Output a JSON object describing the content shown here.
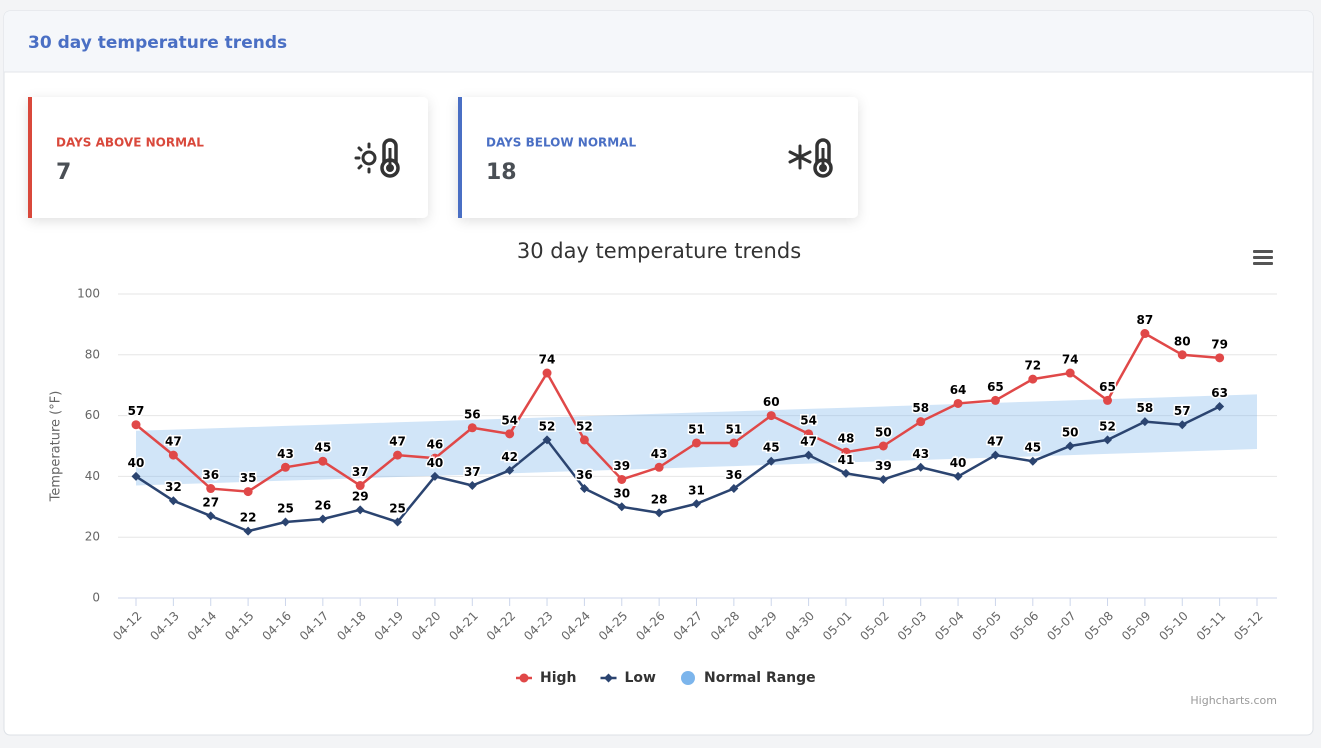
{
  "header": {
    "title": "30 day temperature trends"
  },
  "cards": [
    {
      "label": "DAYS ABOVE NORMAL",
      "value": 7
    },
    {
      "label": "DAYS BELOW NORMAL",
      "value": 18
    }
  ],
  "chart_data": {
    "type": "line",
    "title": "30 day temperature trends",
    "y_label": "Temperature (°F)",
    "categories": [
      "04-12",
      "04-13",
      "04-14",
      "04-15",
      "04-16",
      "04-17",
      "04-18",
      "04-19",
      "04-20",
      "04-21",
      "04-22",
      "04-23",
      "04-24",
      "04-25",
      "04-26",
      "04-27",
      "04-28",
      "04-29",
      "04-30",
      "05-01",
      "05-02",
      "05-03",
      "05-04",
      "05-05",
      "05-06",
      "05-07",
      "05-08",
      "05-09",
      "05-10",
      "05-11",
      "05-12"
    ],
    "ylim": [
      0,
      100
    ],
    "yticks": [
      0,
      20,
      40,
      60,
      80,
      100
    ],
    "grid": true,
    "series": [
      {
        "name": "High",
        "color": "#e04848",
        "marker": "circle",
        "values": [
          57,
          47,
          36,
          35,
          43,
          45,
          37,
          47,
          46,
          56,
          54,
          74,
          52,
          39,
          43,
          51,
          51,
          60,
          54,
          48,
          50,
          58,
          64,
          65,
          72,
          74,
          65,
          87,
          80,
          79,
          null
        ]
      },
      {
        "name": "Low",
        "color": "#2b4470",
        "marker": "diamond",
        "values": [
          40,
          32,
          27,
          22,
          25,
          26,
          29,
          25,
          40,
          37,
          42,
          52,
          36,
          30,
          28,
          31,
          36,
          45,
          47,
          41,
          39,
          43,
          40,
          47,
          45,
          50,
          52,
          58,
          57,
          63,
          null
        ]
      }
    ],
    "range": {
      "name": "Normal Range",
      "color": "#7cb5ec",
      "lows": [
        37,
        37.4,
        37.8,
        38.2,
        38.6,
        39,
        39.4,
        39.8,
        40.2,
        40.6,
        41,
        41.4,
        41.8,
        42.2,
        42.6,
        43,
        43.4,
        43.8,
        44.2,
        44.6,
        45,
        45.4,
        45.8,
        46.2,
        46.6,
        47,
        47.4,
        47.8,
        48.2,
        48.6,
        49
      ],
      "highs": [
        55,
        55.4,
        55.8,
        56.2,
        56.6,
        57,
        57.4,
        57.8,
        58.2,
        58.6,
        59,
        59.4,
        59.8,
        60.2,
        60.6,
        61,
        61.4,
        61.8,
        62.2,
        62.6,
        63,
        63.4,
        63.8,
        64.2,
        64.6,
        65,
        65.4,
        65.8,
        66.2,
        66.6,
        67
      ]
    },
    "credits": "Highcharts.com"
  }
}
